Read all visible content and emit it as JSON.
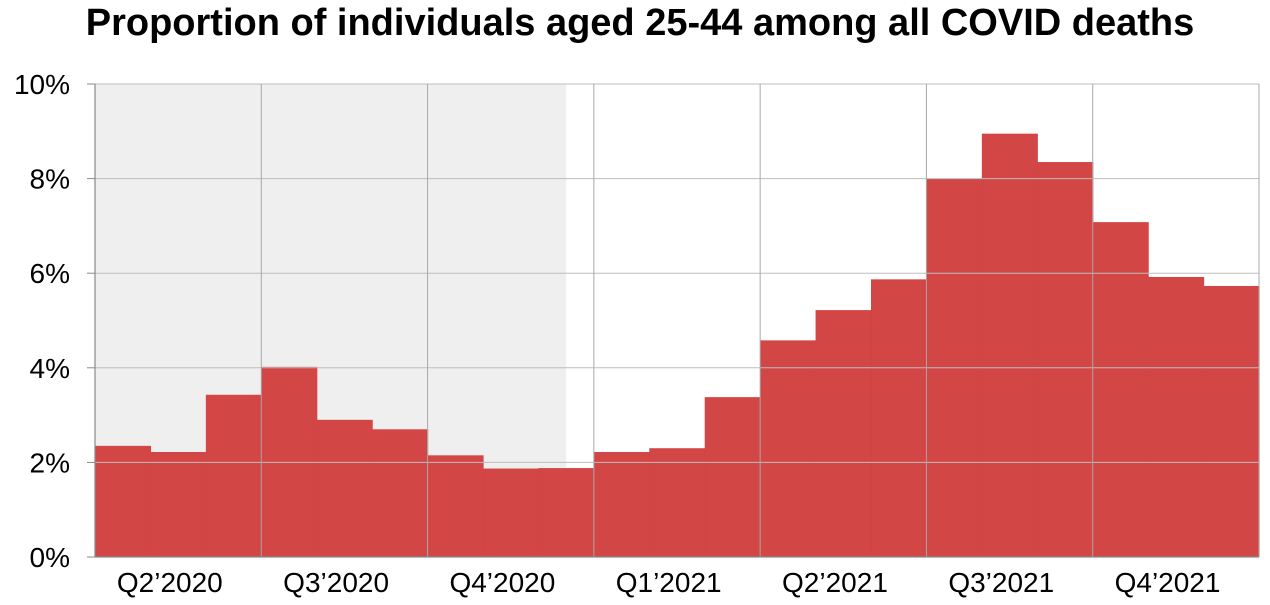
{
  "chart_data": {
    "type": "bar",
    "title": "Proportion of individuals aged 25-44 among all COVID deaths",
    "xlabel": "",
    "ylabel": "",
    "ylim": [
      0,
      10
    ],
    "y_ticks": [
      "0%",
      "2%",
      "4%",
      "6%",
      "8%",
      "10%"
    ],
    "x_tick_labels": [
      "Q2’2020",
      "Q3’2020",
      "Q4’2020",
      "Q1’2021",
      "Q2’2021",
      "Q3’2021",
      "Q4’2021"
    ],
    "grid": true,
    "shaded_region": {
      "from_bar": 0,
      "to_bar": 8.5,
      "color": "#efefef"
    },
    "bar_color": "#d24242",
    "values": [
      2.35,
      2.22,
      3.43,
      4.02,
      2.9,
      2.7,
      2.15,
      1.87,
      1.88,
      2.22,
      2.3,
      3.38,
      4.58,
      5.22,
      5.87,
      8.0,
      8.95,
      8.35,
      7.08,
      5.92,
      5.73
    ]
  }
}
